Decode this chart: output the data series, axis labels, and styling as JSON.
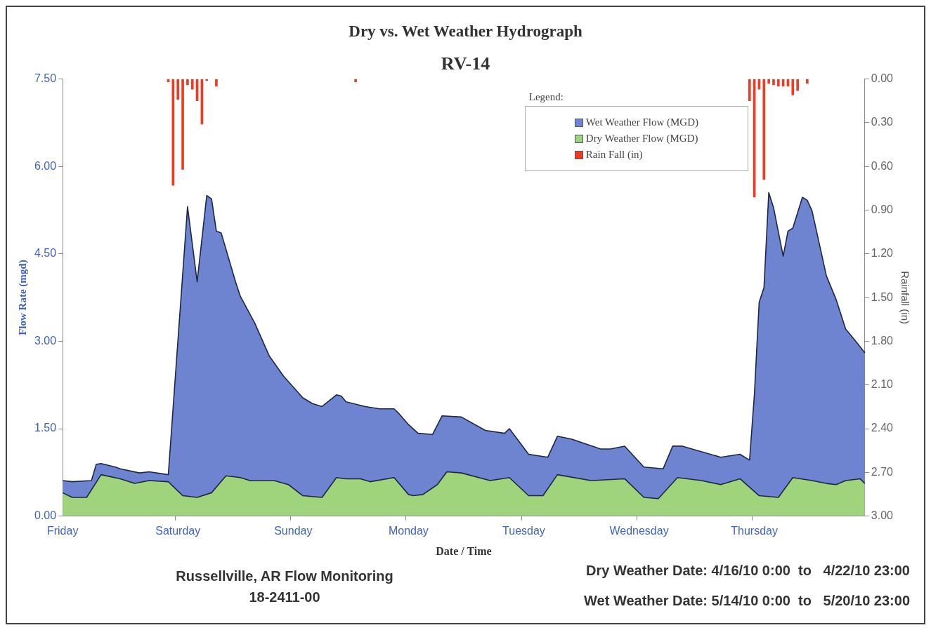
{
  "chart_data": {
    "type": "area",
    "title": "Dry vs. Wet Weather Hydrograph",
    "subtitle": "RV-14",
    "xlabel": "Date / Time",
    "ylabel": "Flow Rate (mgd)",
    "y2label": "Rainfall (in)",
    "legend_title": "Legend:",
    "legend": "top right",
    "marker": "none",
    "categories": [
      "Friday",
      null,
      null,
      null,
      null,
      null,
      null,
      null,
      null,
      null,
      null,
      null,
      null,
      null,
      null,
      null,
      null,
      null,
      null,
      null,
      null,
      null,
      null,
      null,
      "Saturday",
      null,
      null,
      null,
      null,
      null,
      null,
      null,
      null,
      null,
      null,
      null,
      null,
      null,
      null,
      null,
      null,
      null,
      null,
      null,
      null,
      null,
      null,
      null,
      "Sunday",
      null,
      null,
      null,
      null,
      null,
      null,
      null,
      null,
      null,
      null,
      null,
      null,
      null,
      null,
      null,
      null,
      null,
      null,
      null,
      null,
      null,
      null,
      null,
      "Monday",
      null,
      null,
      null,
      null,
      null,
      null,
      null,
      null,
      null,
      null,
      null,
      null,
      null,
      null,
      null,
      null,
      null,
      null,
      null,
      null,
      null,
      null,
      null,
      "Tuesday",
      null,
      null,
      null,
      null,
      null,
      null,
      null,
      null,
      null,
      null,
      null,
      null,
      null,
      null,
      null,
      null,
      null,
      null,
      null,
      null,
      null,
      null,
      null,
      "Wednesday",
      null,
      null,
      null,
      null,
      null,
      null,
      null,
      null,
      null,
      null,
      null,
      null,
      null,
      null,
      null,
      null,
      null,
      null,
      null,
      null,
      null,
      null,
      null,
      "Thursday",
      null,
      null,
      null,
      null,
      null,
      null,
      null,
      null,
      null,
      null,
      null,
      null,
      null,
      null,
      null,
      null,
      null,
      null,
      null,
      null,
      null,
      null,
      null
    ],
    "ylim": [
      0,
      7.5
    ],
    "yticks": [
      {
        "value": 0,
        "label": "0.00"
      },
      {
        "value": 1.5,
        "label": "1.50"
      },
      {
        "value": 3,
        "label": "3.00"
      },
      {
        "value": 4.5,
        "label": "4.50"
      },
      {
        "value": 6,
        "label": "6.00"
      },
      {
        "value": 7.5,
        "label": "7.50"
      }
    ],
    "y2lim": [
      3,
      0
    ],
    "y2ticks": [
      {
        "value": 0,
        "label": "0.00"
      },
      {
        "value": 0.3,
        "label": "0.30"
      },
      {
        "value": 0.6,
        "label": "0.60"
      },
      {
        "value": 0.9,
        "label": "0.90"
      },
      {
        "value": 1.2,
        "label": "1.20"
      },
      {
        "value": 1.5,
        "label": "1.50"
      },
      {
        "value": 1.8,
        "label": "1.80"
      },
      {
        "value": 2.1,
        "label": "2.10"
      },
      {
        "value": 2.4,
        "label": "2.40"
      },
      {
        "value": 2.7,
        "label": "2.70"
      },
      {
        "value": 3,
        "label": "3.00"
      }
    ],
    "series": [
      {
        "name": "Wet Weather Flow (MGD)",
        "color": "#6f84d0",
        "values": [
          0.61,
          null,
          0.59,
          null,
          null,
          null,
          0.61,
          0.89,
          0.9,
          null,
          null,
          0.84,
          0.81,
          null,
          null,
          null,
          0.74,
          null,
          0.76,
          null,
          null,
          null,
          0.71,
          null,
          null,
          null,
          5.31,
          null,
          4.02,
          null,
          5.5,
          5.44,
          4.89,
          4.86,
          null,
          null,
          4.02,
          3.77,
          null,
          null,
          3.31,
          null,
          null,
          2.75,
          null,
          null,
          2.4,
          null,
          null,
          null,
          2.03,
          null,
          1.93,
          null,
          1.88,
          null,
          null,
          2.08,
          2.06,
          1.96,
          null,
          null,
          null,
          1.88,
          null,
          null,
          1.84,
          null,
          null,
          1.84,
          1.76,
          null,
          1.57,
          null,
          1.42,
          null,
          null,
          1.4,
          null,
          1.72,
          null,
          null,
          null,
          1.7,
          null,
          null,
          null,
          null,
          1.47,
          null,
          null,
          null,
          1.42,
          1.5,
          null,
          null,
          null,
          1.06,
          null,
          null,
          null,
          1.01,
          null,
          1.37,
          null,
          null,
          1.32,
          null,
          null,
          null,
          null,
          null,
          1.15,
          null,
          1.15,
          null,
          null,
          1.2,
          null,
          null,
          null,
          0.84,
          null,
          null,
          null,
          0.81,
          null,
          1.2,
          null,
          1.2,
          null,
          null,
          null,
          null,
          null,
          null,
          null,
          1.01,
          null,
          null,
          null,
          1.06,
          null,
          0.96,
          2.08,
          3.67,
          3.92,
          5.55,
          5.29,
          null,
          4.46,
          4.89,
          4.94,
          null,
          5.47,
          5.42,
          5.24,
          null,
          null,
          4.12,
          null,
          3.72,
          null,
          3.21,
          null,
          3.01,
          null,
          2.8
        ]
      },
      {
        "name": "Dry Weather Flow (MGD)",
        "color": "#9fd47c",
        "values": [
          0.4,
          null,
          0.32,
          null,
          null,
          0.32,
          null,
          null,
          0.71,
          null,
          null,
          null,
          0.64,
          null,
          null,
          0.56,
          null,
          null,
          0.61,
          null,
          null,
          null,
          0.59,
          null,
          null,
          0.35,
          null,
          null,
          0.32,
          null,
          null,
          0.4,
          null,
          null,
          0.69,
          null,
          null,
          0.66,
          null,
          0.61,
          null,
          null,
          null,
          null,
          0.61,
          null,
          null,
          0.54,
          null,
          null,
          0.35,
          null,
          null,
          null,
          0.32,
          null,
          null,
          0.66,
          null,
          0.64,
          null,
          null,
          0.64,
          null,
          0.59,
          null,
          null,
          null,
          null,
          0.66,
          null,
          null,
          0.37,
          0.35,
          null,
          0.37,
          null,
          null,
          0.54,
          null,
          0.76,
          null,
          null,
          0.74,
          null,
          null,
          null,
          null,
          null,
          0.61,
          null,
          null,
          null,
          0.66,
          null,
          null,
          null,
          0.35,
          null,
          null,
          0.35,
          null,
          null,
          0.71,
          null,
          null,
          null,
          null,
          null,
          null,
          0.61,
          null,
          null,
          null,
          null,
          null,
          null,
          0.64,
          null,
          null,
          null,
          0.32,
          null,
          null,
          0.3,
          null,
          null,
          null,
          0.66,
          null,
          null,
          null,
          null,
          0.61,
          null,
          null,
          null,
          0.54,
          null,
          null,
          null,
          0.64,
          null,
          null,
          null,
          0.35,
          null,
          null,
          null,
          0.32,
          null,
          null,
          0.66,
          null,
          null,
          null,
          0.61,
          null,
          null,
          0.56,
          null,
          0.54,
          null,
          0.61,
          null,
          null,
          0.64,
          0.56
        ]
      },
      {
        "name": "Rain Fall (in)",
        "type": "bar",
        "axis": "y2",
        "color": "#ee3b22",
        "values": [
          null,
          null,
          null,
          null,
          null,
          null,
          null,
          null,
          null,
          null,
          null,
          null,
          null,
          null,
          null,
          null,
          null,
          null,
          null,
          null,
          null,
          null,
          0.02,
          0.73,
          0.14,
          0.62,
          0.04,
          0.07,
          0.15,
          0.31,
          0.01,
          null,
          0.05,
          null,
          null,
          null,
          null,
          null,
          null,
          null,
          null,
          null,
          null,
          null,
          null,
          null,
          null,
          null,
          null,
          null,
          null,
          null,
          null,
          null,
          null,
          null,
          null,
          null,
          null,
          null,
          null,
          0.02,
          null,
          null,
          null,
          null,
          null,
          null,
          null,
          null,
          null,
          null,
          null,
          null,
          null,
          null,
          null,
          null,
          null,
          null,
          null,
          null,
          null,
          null,
          null,
          null,
          null,
          null,
          null,
          null,
          null,
          null,
          null,
          null,
          null,
          null,
          null,
          null,
          null,
          null,
          null,
          null,
          null,
          null,
          null,
          null,
          null,
          null,
          null,
          null,
          null,
          null,
          null,
          null,
          null,
          null,
          null,
          null,
          null,
          null,
          null,
          null,
          null,
          null,
          null,
          null,
          null,
          null,
          null,
          null,
          null,
          null,
          null,
          null,
          null,
          null,
          null,
          null,
          null,
          null,
          null,
          null,
          null,
          0.15,
          0.81,
          0.07,
          0.69,
          0.03,
          0.04,
          0.05,
          0.05,
          0.05,
          0.11,
          0.08,
          null,
          0.03,
          null,
          null,
          null,
          null,
          null,
          null,
          null,
          null,
          null,
          null,
          null,
          null
        ]
      }
    ],
    "annotations": [
      "Russellville, AR Flow Monitoring",
      "18-2411-00",
      "Dry Weather Date: 4/16/10 0:00  to   4/22/10 23:00",
      "Wet Weather Date: 5/14/10 0:00  to   5/20/10 23:00"
    ]
  }
}
